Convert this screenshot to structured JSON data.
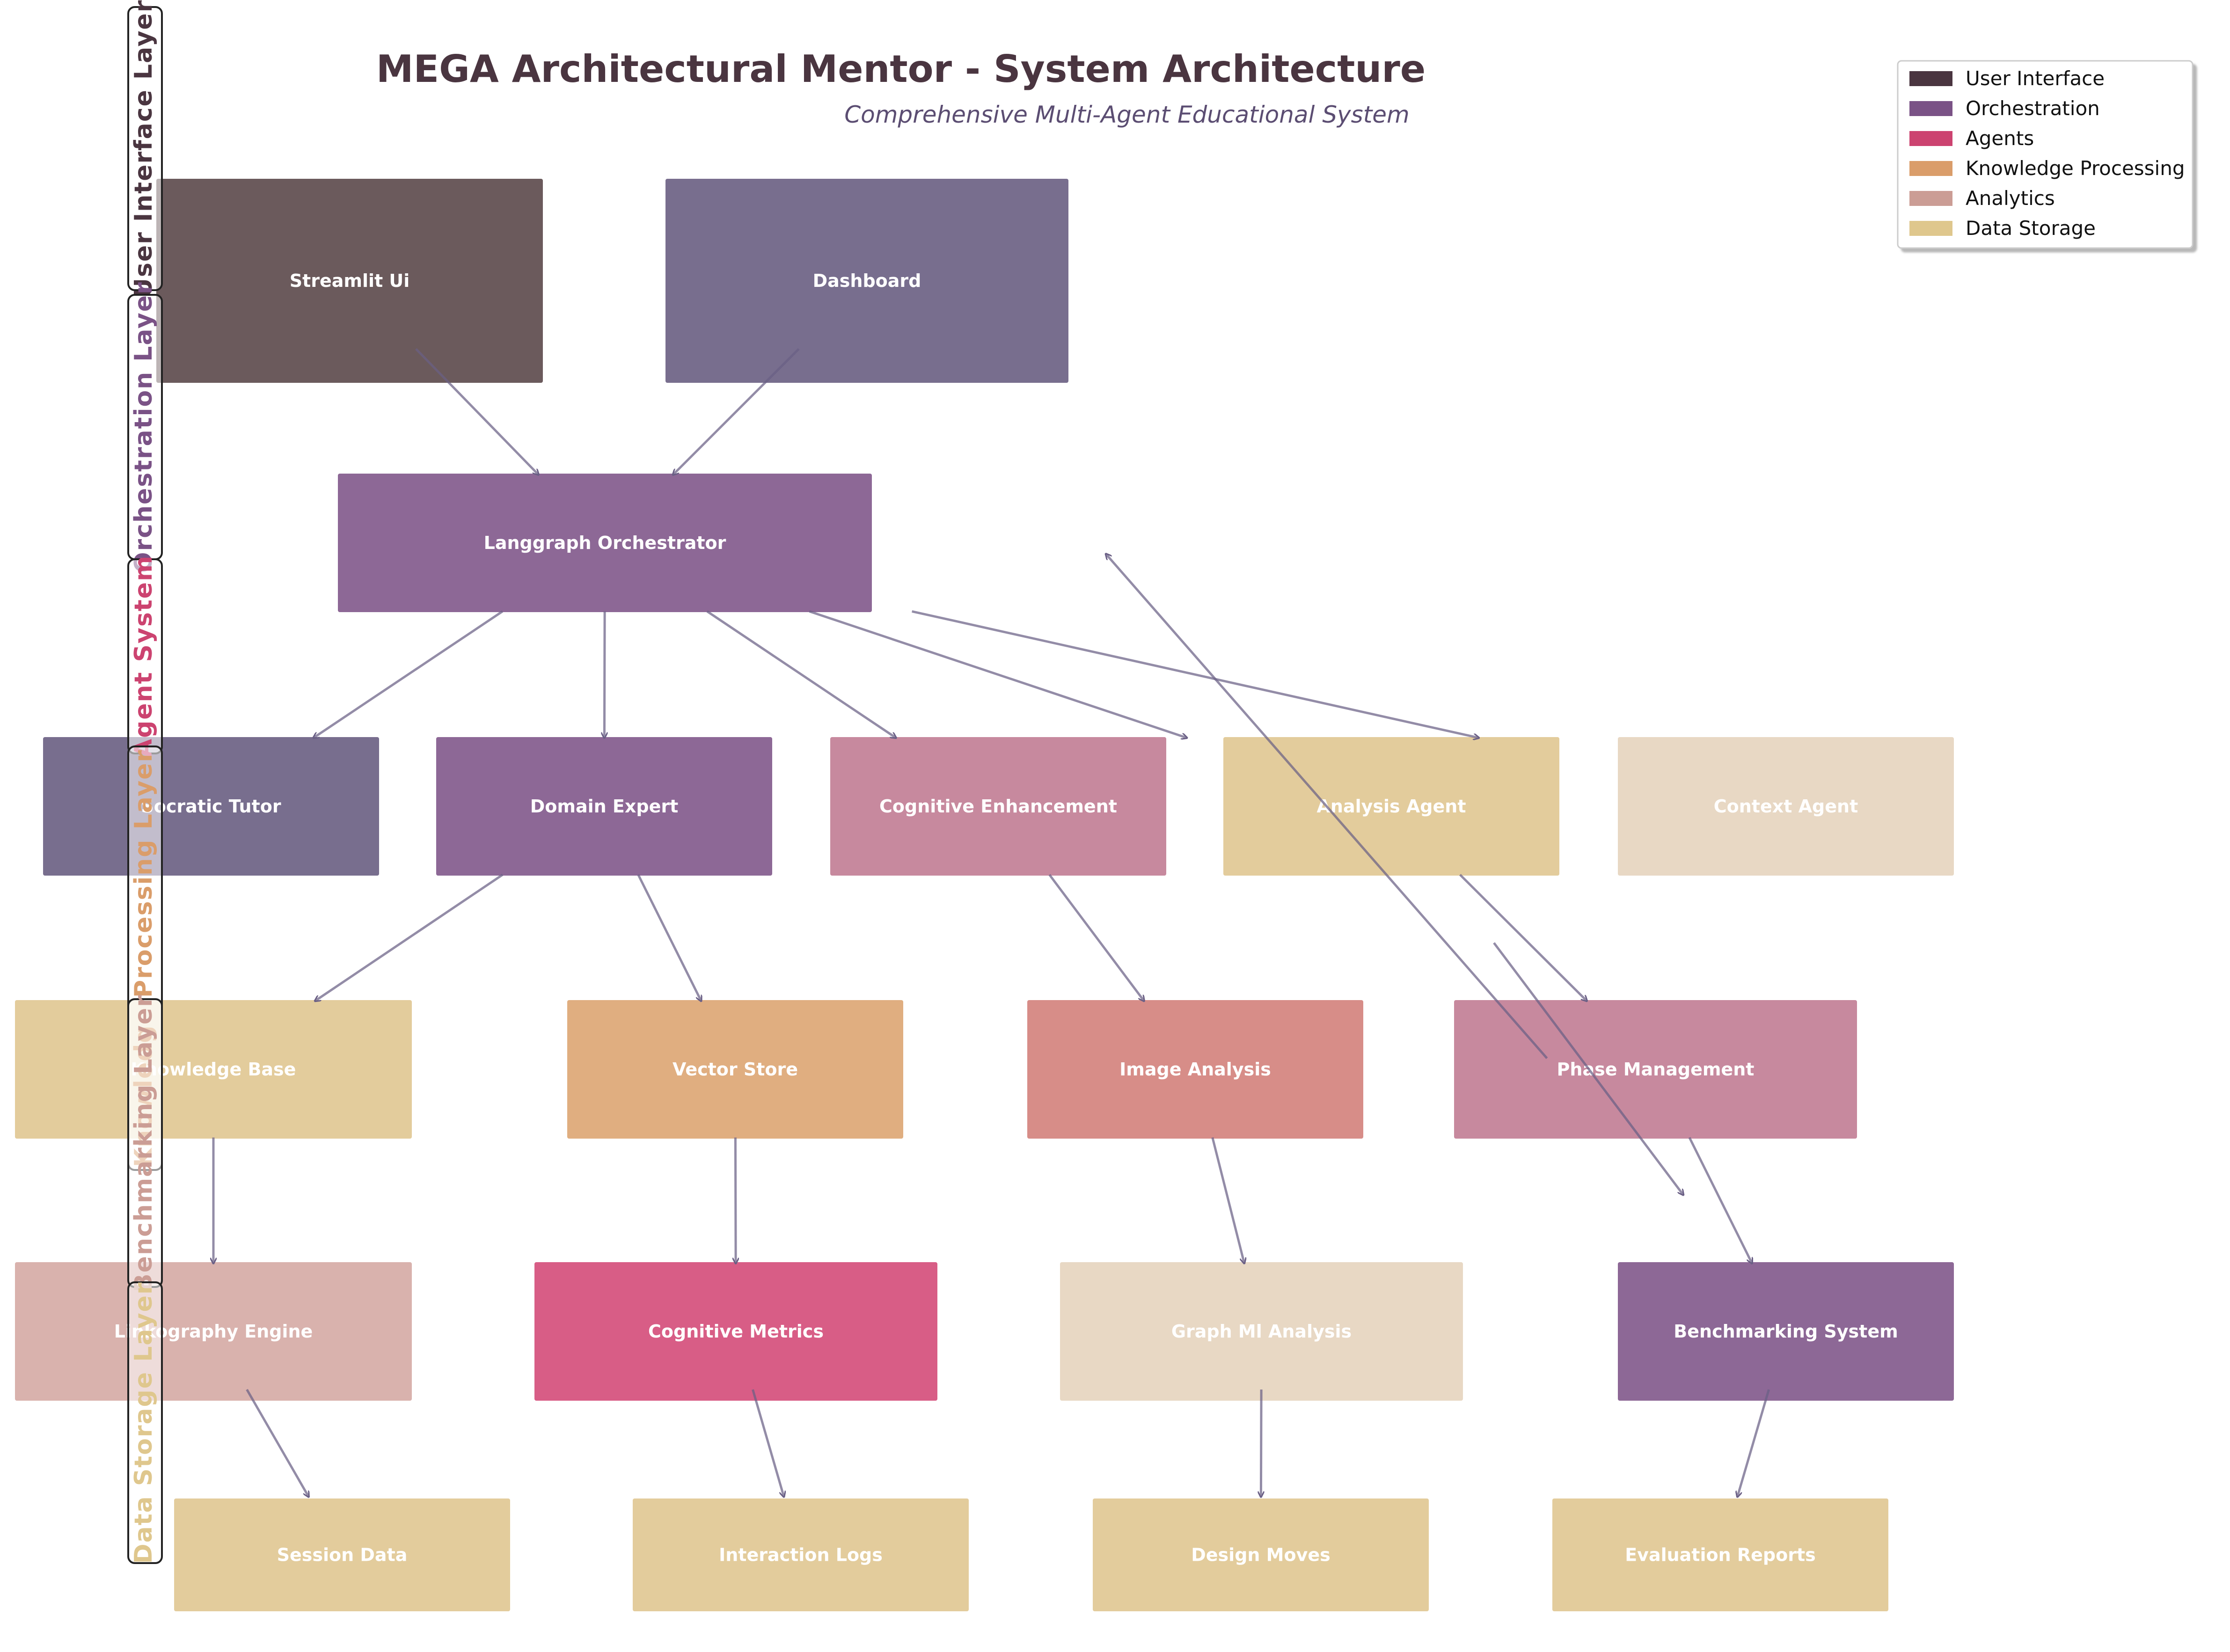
{
  "title": "MEGA Architectural Mentor - System Architecture",
  "subtitle": "Comprehensive Multi-Agent Educational System",
  "legend": [
    {
      "label": "User Interface",
      "color": "#4a3540"
    },
    {
      "label": "Orchestration",
      "color": "#7a5286"
    },
    {
      "label": "Agents",
      "color": "#cc4370"
    },
    {
      "label": "Knowledge Processing",
      "color": "#da9d6a"
    },
    {
      "label": "Analytics",
      "color": "#cb9d95"
    },
    {
      "label": "Data Storage",
      "color": "#dfc78d"
    }
  ],
  "layers": [
    {
      "label": "User Interface Layer",
      "color": "#4a3540"
    },
    {
      "label": "Orchestration Layer",
      "color": "#7a5286"
    },
    {
      "label": "Agent System",
      "color": "#cc4370"
    },
    {
      "label": "Knowledge Processing Layer",
      "color": "#da9d6a"
    },
    {
      "label": "Benchmarking Layer",
      "color": "#cb9d95"
    },
    {
      "label": "Data Storage Layer",
      "color": "#dfc78d"
    }
  ],
  "nodes": [
    {
      "id": "streamlit",
      "label": "Streamlit Ui",
      "color": "#6b5a5c"
    },
    {
      "id": "dashboard",
      "label": "Dashboard",
      "color": "#786e8e"
    },
    {
      "id": "orchestrator",
      "label": "Langgraph Orchestrator",
      "color": "#8d6896"
    },
    {
      "id": "socratic",
      "label": "Socratic Tutor",
      "color": "#786e8e"
    },
    {
      "id": "domain",
      "label": "Domain Expert",
      "color": "#8d6896"
    },
    {
      "id": "cognitive_enh",
      "label": "Cognitive Enhancement",
      "color": "#c7899e"
    },
    {
      "id": "analysis",
      "label": "Analysis Agent",
      "color": "#e3cc9c"
    },
    {
      "id": "context",
      "label": "Context Agent",
      "color": "#e8d8c4"
    },
    {
      "id": "knowledge_base",
      "label": "Knowledge Base",
      "color": "#e3cc9c"
    },
    {
      "id": "vector",
      "label": "Vector Store",
      "color": "#e0ae80"
    },
    {
      "id": "image",
      "label": "Image Analysis",
      "color": "#d78d88"
    },
    {
      "id": "phase",
      "label": "Phase Management",
      "color": "#c7899e"
    },
    {
      "id": "linkography",
      "label": "Linkography Engine",
      "color": "#d9b2ad"
    },
    {
      "id": "cog_metrics",
      "label": "Cognitive Metrics",
      "color": "#d85d86"
    },
    {
      "id": "graph_ml",
      "label": "Graph Ml Analysis",
      "color": "#e8d8c4"
    },
    {
      "id": "benchmarking",
      "label": "Benchmarking System",
      "color": "#8d6896"
    },
    {
      "id": "session",
      "label": "Session Data",
      "color": "#e3cc9c"
    },
    {
      "id": "interaction",
      "label": "Interaction Logs",
      "color": "#e3cc9c"
    },
    {
      "id": "design_moves",
      "label": "Design Moves",
      "color": "#e3cc9c"
    },
    {
      "id": "eval_reports",
      "label": "Evaluation Reports",
      "color": "#e3cc9c"
    }
  ],
  "edges": [
    [
      "streamlit",
      "orchestrator"
    ],
    [
      "dashboard",
      "orchestrator"
    ],
    [
      "orchestrator",
      "socratic"
    ],
    [
      "orchestrator",
      "domain"
    ],
    [
      "orchestrator",
      "cognitive_enh"
    ],
    [
      "orchestrator",
      "analysis"
    ],
    [
      "orchestrator",
      "context"
    ],
    [
      "domain",
      "knowledge_base"
    ],
    [
      "domain",
      "vector"
    ],
    [
      "cognitive_enh",
      "image"
    ],
    [
      "analysis",
      "phase"
    ],
    [
      "analysis",
      "benchmarking"
    ],
    [
      "benchmarking",
      "dashboard"
    ],
    [
      "knowledge_base",
      "linkography"
    ],
    [
      "vector",
      "cog_metrics"
    ],
    [
      "image",
      "graph_ml"
    ],
    [
      "phase",
      "benchmarking"
    ],
    [
      "linkography",
      "session"
    ],
    [
      "cog_metrics",
      "interaction"
    ],
    [
      "graph_ml",
      "design_moves"
    ],
    [
      "benchmarking",
      "eval_reports"
    ]
  ],
  "edge_color": "#6a5f85"
}
